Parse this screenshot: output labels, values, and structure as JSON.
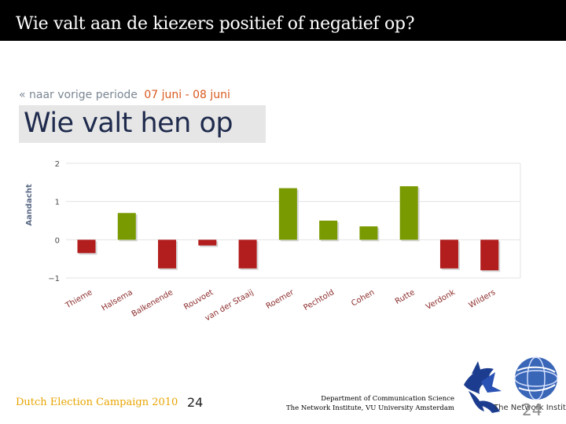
{
  "slide": {
    "title": "Wie valt aan de kiezers positief of negatief op?",
    "page_number": "24"
  },
  "nav": {
    "previous_period": "« naar vorige periode",
    "date_range": "07 juni - 08 juni"
  },
  "chart_heading": "Wie valt hen op",
  "footer": {
    "campaign": "Dutch Election Campaign 2010",
    "campaign_number": "24",
    "department": "Department of Communication Science",
    "institute": "The Network Institute, VU University Amsterdam",
    "logo_text": "The Network Institute"
  },
  "colors": {
    "positive": "#7a9a01",
    "negative": "#b21d1d",
    "title_bg": "#000000",
    "accent_orange": "#d9591f",
    "footer_gold": "#e8a400"
  },
  "chart_data": {
    "type": "bar",
    "title": "Wie valt hen op",
    "xlabel": "",
    "ylabel": "Aandacht",
    "ylim": [
      -1,
      2
    ],
    "yticks": [
      2,
      1,
      0,
      -1
    ],
    "ytick_labels": [
      "2",
      "1",
      "0",
      "−1"
    ],
    "grid": true,
    "categories": [
      "Thieme",
      "Halsema",
      "Balkenende",
      "Rouvoet",
      "van der Staaij",
      "Roemer",
      "Pechtold",
      "Cohen",
      "Rutte",
      "Verdonk",
      "Wilders"
    ],
    "values": [
      -0.35,
      0.7,
      -0.75,
      -0.15,
      -0.75,
      1.35,
      0.5,
      0.35,
      1.4,
      -0.75,
      -0.8
    ]
  }
}
